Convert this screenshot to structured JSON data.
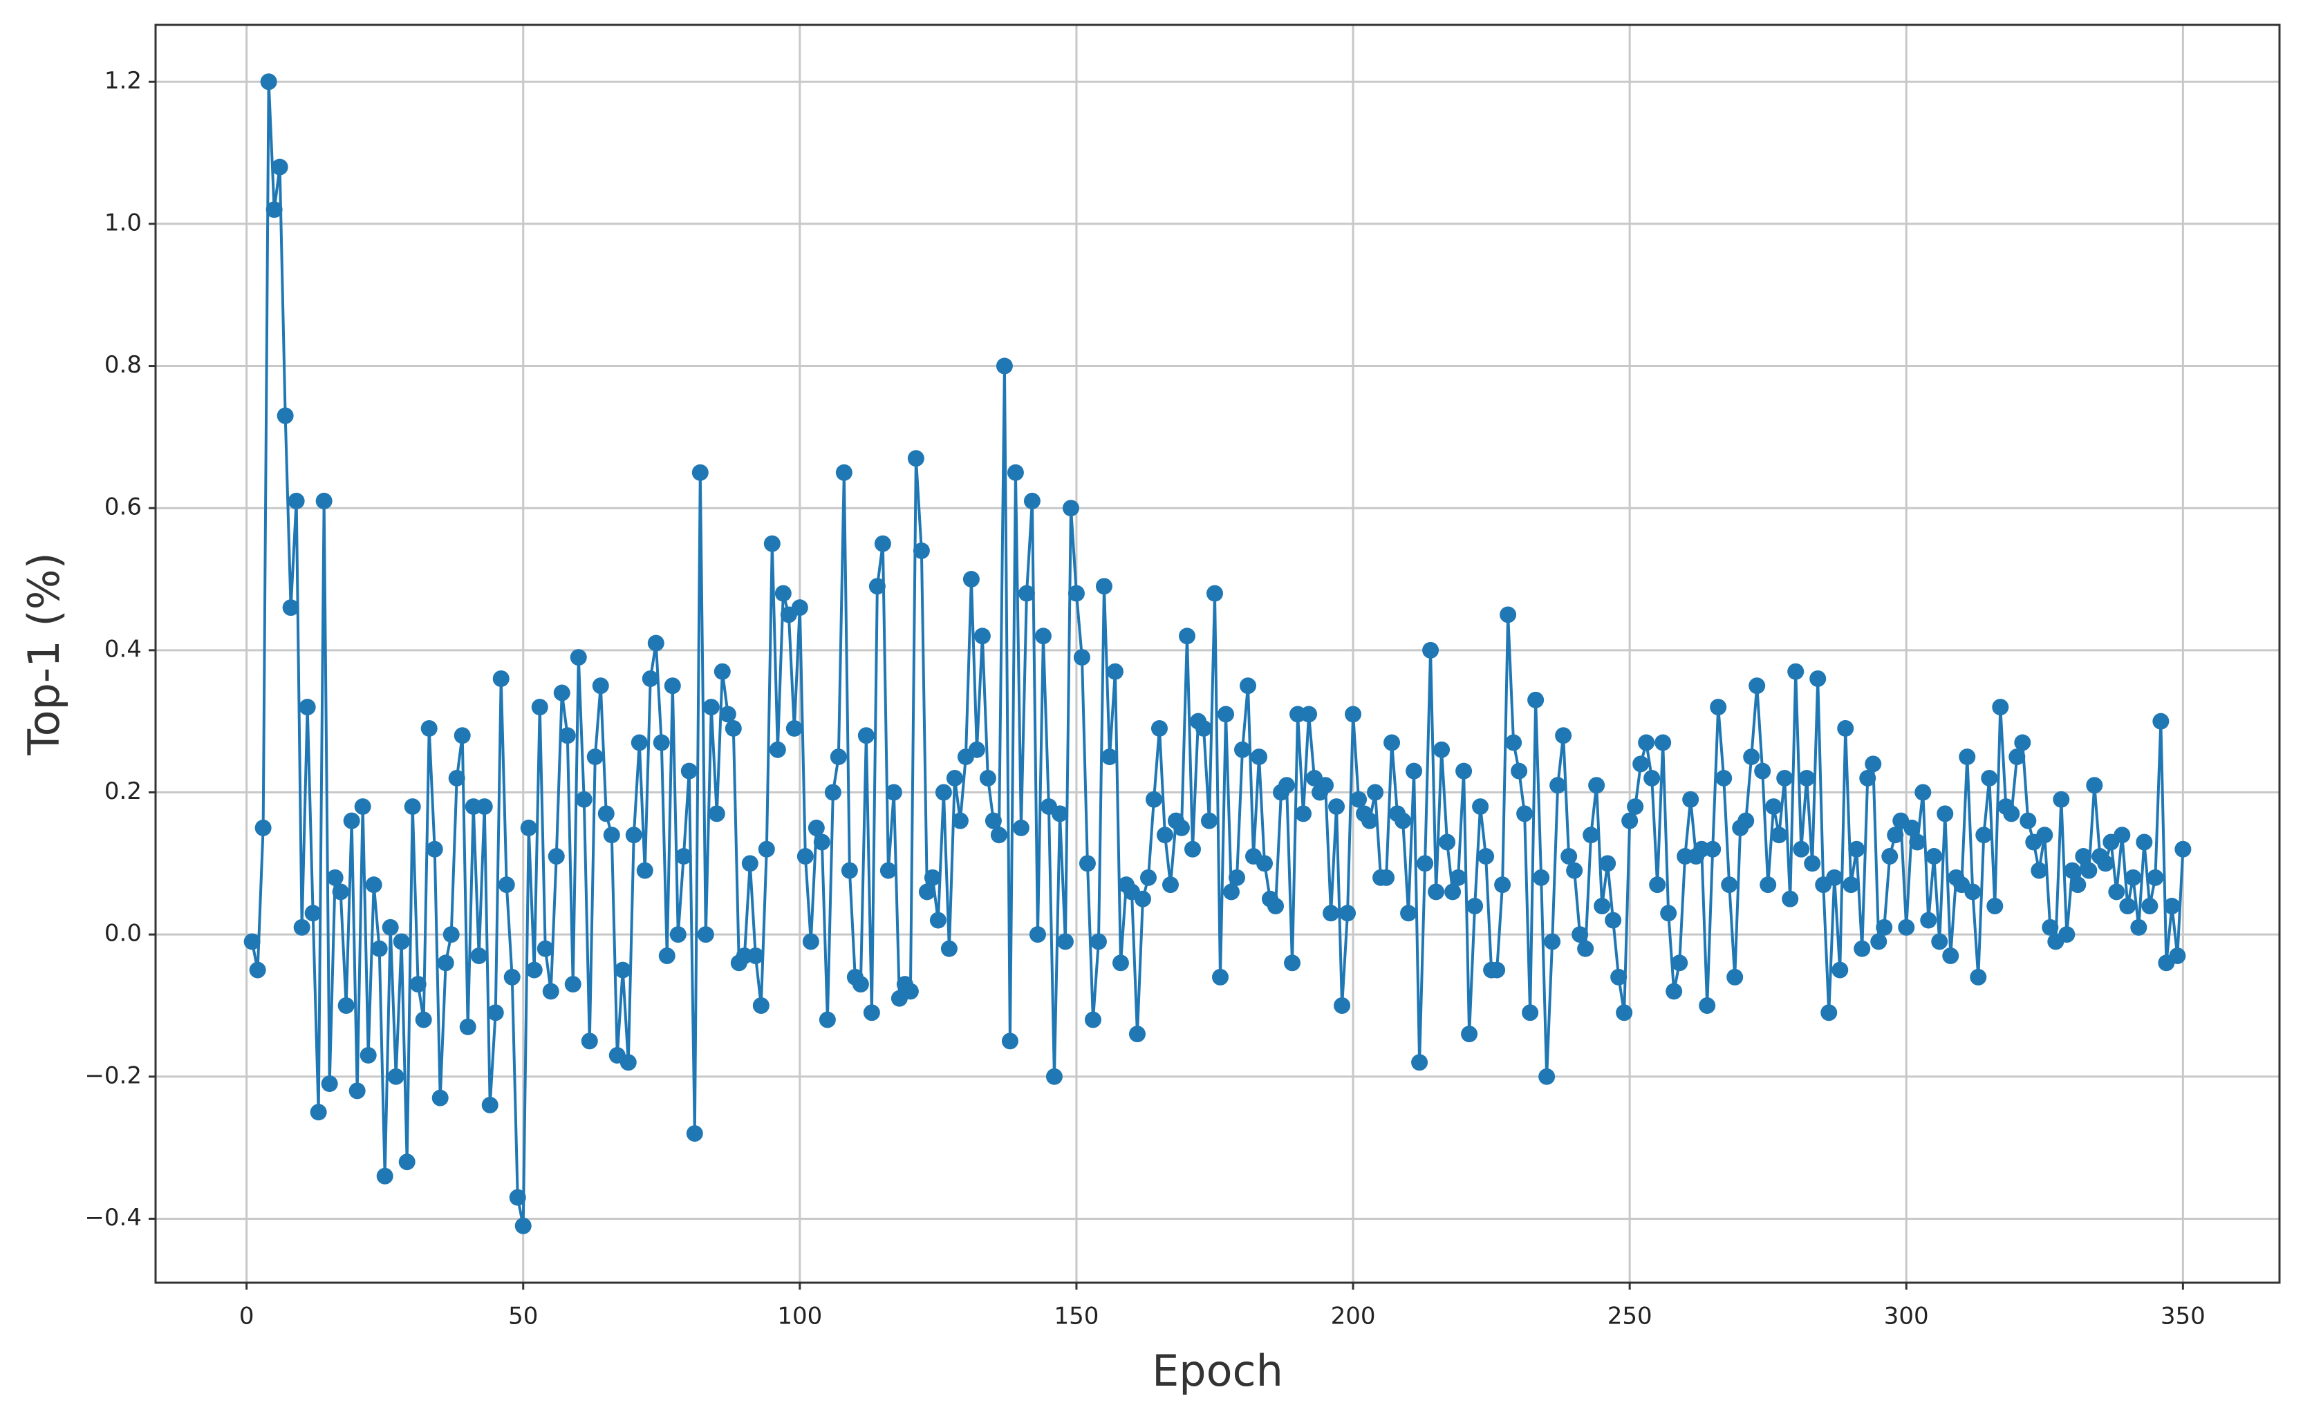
{
  "chart_data": {
    "type": "line",
    "xlabel": "Epoch",
    "ylabel": "Top-1 (%)",
    "color": "#1f77b4",
    "grid": true,
    "xlim": [
      -16.45,
      367.45
    ],
    "xticks": [
      0,
      50,
      100,
      150,
      200,
      250,
      300,
      350
    ],
    "ylim": [
      -0.49,
      1.28
    ],
    "yticks": [
      {
        "value": -0.4,
        "label": "−0.4"
      },
      {
        "value": -0.2,
        "label": "−0.2"
      },
      {
        "value": 0,
        "label": "0.0"
      },
      0.2,
      0.4,
      0.6,
      0.8,
      {
        "value": 1,
        "label": "1.0"
      },
      1.2
    ],
    "x": [
      1,
      2,
      3,
      4,
      5,
      6,
      7,
      8,
      9,
      10,
      11,
      12,
      13,
      14,
      15,
      16,
      17,
      18,
      19,
      20,
      21,
      22,
      23,
      24,
      25,
      26,
      27,
      28,
      29,
      30,
      31,
      32,
      33,
      34,
      35,
      36,
      37,
      38,
      39,
      40,
      41,
      42,
      43,
      44,
      45,
      46,
      47,
      48,
      49,
      50,
      51,
      52,
      53,
      54,
      55,
      56,
      57,
      58,
      59,
      60,
      61,
      62,
      63,
      64,
      65,
      66,
      67,
      68,
      69,
      70,
      71,
      72,
      73,
      74,
      75,
      76,
      77,
      78,
      79,
      80,
      81,
      82,
      83,
      84,
      85,
      86,
      87,
      88,
      89,
      90,
      91,
      92,
      93,
      94,
      95,
      96,
      97,
      98,
      99,
      100,
      101,
      102,
      103,
      104,
      105,
      106,
      107,
      108,
      109,
      110,
      111,
      112,
      113,
      114,
      115,
      116,
      117,
      118,
      119,
      120,
      121,
      122,
      123,
      124,
      125,
      126,
      127,
      128,
      129,
      130,
      131,
      132,
      133,
      134,
      135,
      136,
      137,
      138,
      139,
      140,
      141,
      142,
      143,
      144,
      145,
      146,
      147,
      148,
      149,
      150,
      151,
      152,
      153,
      154,
      155,
      156,
      157,
      158,
      159,
      160,
      161,
      162,
      163,
      164,
      165,
      166,
      167,
      168,
      169,
      170,
      171,
      172,
      173,
      174,
      175,
      176,
      177,
      178,
      179,
      180,
      181,
      182,
      183,
      184,
      185,
      186,
      187,
      188,
      189,
      190,
      191,
      192,
      193,
      194,
      195,
      196,
      197,
      198,
      199,
      200,
      201,
      202,
      203,
      204,
      205,
      206,
      207,
      208,
      209,
      210,
      211,
      212,
      213,
      214,
      215,
      216,
      217,
      218,
      219,
      220,
      221,
      222,
      223,
      224,
      225,
      226,
      227,
      228,
      229,
      230,
      231,
      232,
      233,
      234,
      235,
      236,
      237,
      238,
      239,
      240,
      241,
      242,
      243,
      244,
      245,
      246,
      247,
      248,
      249,
      250,
      251,
      252,
      253,
      254,
      255,
      256,
      257,
      258,
      259,
      260,
      261,
      262,
      263,
      264,
      265,
      266,
      267,
      268,
      269,
      270,
      271,
      272,
      273,
      274,
      275,
      276,
      277,
      278,
      279,
      280,
      281,
      282,
      283,
      284,
      285,
      286,
      287,
      288,
      289,
      290,
      291,
      292,
      293,
      294,
      295,
      296,
      297,
      298,
      299,
      300,
      301,
      302,
      303,
      304,
      305,
      306,
      307,
      308,
      309,
      310,
      311,
      312,
      313,
      314,
      315,
      316,
      317,
      318,
      319,
      320,
      321,
      322,
      323,
      324,
      325,
      326,
      327,
      328,
      329,
      330,
      331,
      332,
      333,
      334,
      335,
      336,
      337,
      338,
      339,
      340,
      341,
      342,
      343,
      344,
      345,
      346,
      347,
      348,
      349,
      350
    ],
    "values": [
      -0.01,
      -0.05,
      0.15,
      1.2,
      1.02,
      1.08,
      0.73,
      0.46,
      0.61,
      0.01,
      0.32,
      0.03,
      -0.25,
      0.61,
      -0.21,
      0.08,
      0.06,
      -0.1,
      0.16,
      -0.22,
      0.18,
      -0.17,
      0.07,
      -0.02,
      -0.34,
      0.01,
      -0.2,
      -0.01,
      -0.32,
      0.18,
      -0.07,
      -0.12,
      0.29,
      0.12,
      -0.23,
      -0.04,
      0.0,
      0.22,
      0.28,
      -0.13,
      0.18,
      -0.03,
      0.18,
      -0.24,
      -0.11,
      0.36,
      0.07,
      -0.06,
      -0.37,
      -0.41,
      0.15,
      -0.05,
      0.32,
      -0.02,
      -0.08,
      0.11,
      0.34,
      0.28,
      -0.07,
      0.39,
      0.19,
      -0.15,
      0.25,
      0.35,
      0.17,
      0.14,
      -0.17,
      -0.05,
      -0.18,
      0.14,
      0.27,
      0.09,
      0.36,
      0.41,
      0.27,
      -0.03,
      0.35,
      0.0,
      0.11,
      0.23,
      -0.28,
      0.65,
      0.0,
      0.32,
      0.17,
      0.37,
      0.31,
      0.29,
      -0.04,
      -0.03,
      0.1,
      -0.03,
      -0.1,
      0.12,
      0.55,
      0.26,
      0.48,
      0.45,
      0.29,
      0.46,
      0.11,
      -0.01,
      0.15,
      0.13,
      -0.12,
      0.2,
      0.25,
      0.65,
      0.09,
      -0.06,
      -0.07,
      0.28,
      -0.11,
      0.49,
      0.55,
      0.09,
      0.2,
      -0.09,
      -0.07,
      -0.08,
      0.67,
      0.54,
      0.06,
      0.08,
      0.02,
      0.2,
      -0.02,
      0.22,
      0.16,
      0.25,
      0.5,
      0.26,
      0.42,
      0.22,
      0.16,
      0.14,
      0.8,
      -0.15,
      0.65,
      0.15,
      0.48,
      0.61,
      0.0,
      0.42,
      0.18,
      -0.2,
      0.17,
      -0.01,
      0.6,
      0.48,
      0.39,
      0.1,
      -0.12,
      -0.01,
      0.49,
      0.25,
      0.37,
      -0.04,
      0.07,
      0.06,
      -0.14,
      0.05,
      0.08,
      0.19,
      0.29,
      0.14,
      0.07,
      0.16,
      0.15,
      0.42,
      0.12,
      0.3,
      0.29,
      0.16,
      0.48,
      -0.06,
      0.31,
      0.06,
      0.08,
      0.26,
      0.35,
      0.11,
      0.25,
      0.1,
      0.05,
      0.04,
      0.2,
      0.21,
      -0.04,
      0.31,
      0.17,
      0.31,
      0.22,
      0.2,
      0.21,
      0.03,
      0.18,
      -0.1,
      0.03,
      0.31,
      0.19,
      0.17,
      0.16,
      0.2,
      0.08,
      0.08,
      0.27,
      0.17,
      0.16,
      0.03,
      0.23,
      -0.18,
      0.1,
      0.4,
      0.06,
      0.26,
      0.13,
      0.06,
      0.08,
      0.23,
      -0.14,
      0.04,
      0.18,
      0.11,
      -0.05,
      -0.05,
      0.07,
      0.45,
      0.27,
      0.23,
      0.17,
      -0.11,
      0.33,
      0.08,
      -0.2,
      -0.01,
      0.21,
      0.28,
      0.11,
      0.09,
      0.0,
      -0.02,
      0.14,
      0.21,
      0.04,
      0.1,
      0.02,
      -0.06,
      -0.11,
      0.16,
      0.18,
      0.24,
      0.27,
      0.22,
      0.07,
      0.27,
      0.03,
      -0.08,
      -0.04,
      0.11,
      0.19,
      0.11,
      0.12,
      -0.1,
      0.12,
      0.32,
      0.22,
      0.07,
      -0.06,
      0.15,
      0.16,
      0.25,
      0.35,
      0.23,
      0.07,
      0.18,
      0.14,
      0.22,
      0.05,
      0.37,
      0.12,
      0.22,
      0.1,
      0.36,
      0.07,
      -0.11,
      0.08,
      -0.05,
      0.29,
      0.07,
      0.12,
      -0.02,
      0.22,
      0.24,
      -0.01,
      0.01,
      0.11,
      0.14,
      0.16,
      0.01,
      0.15,
      0.13,
      0.2,
      0.02,
      0.11,
      -0.01,
      0.17,
      -0.03,
      0.08,
      0.07,
      0.25,
      0.06,
      -0.06,
      0.14,
      0.22,
      0.04,
      0.32,
      0.18,
      0.17,
      0.25,
      0.27,
      0.16,
      0.13,
      0.09,
      0.14,
      0.01,
      -0.01,
      0.19,
      0.0,
      0.09,
      0.07,
      0.11,
      0.09,
      0.21,
      0.11,
      0.1,
      0.13,
      0.06,
      0.14,
      0.04,
      0.08,
      0.01,
      0.13,
      0.04,
      0.08,
      0.3,
      -0.04,
      0.04,
      -0.03,
      0.12
    ]
  }
}
